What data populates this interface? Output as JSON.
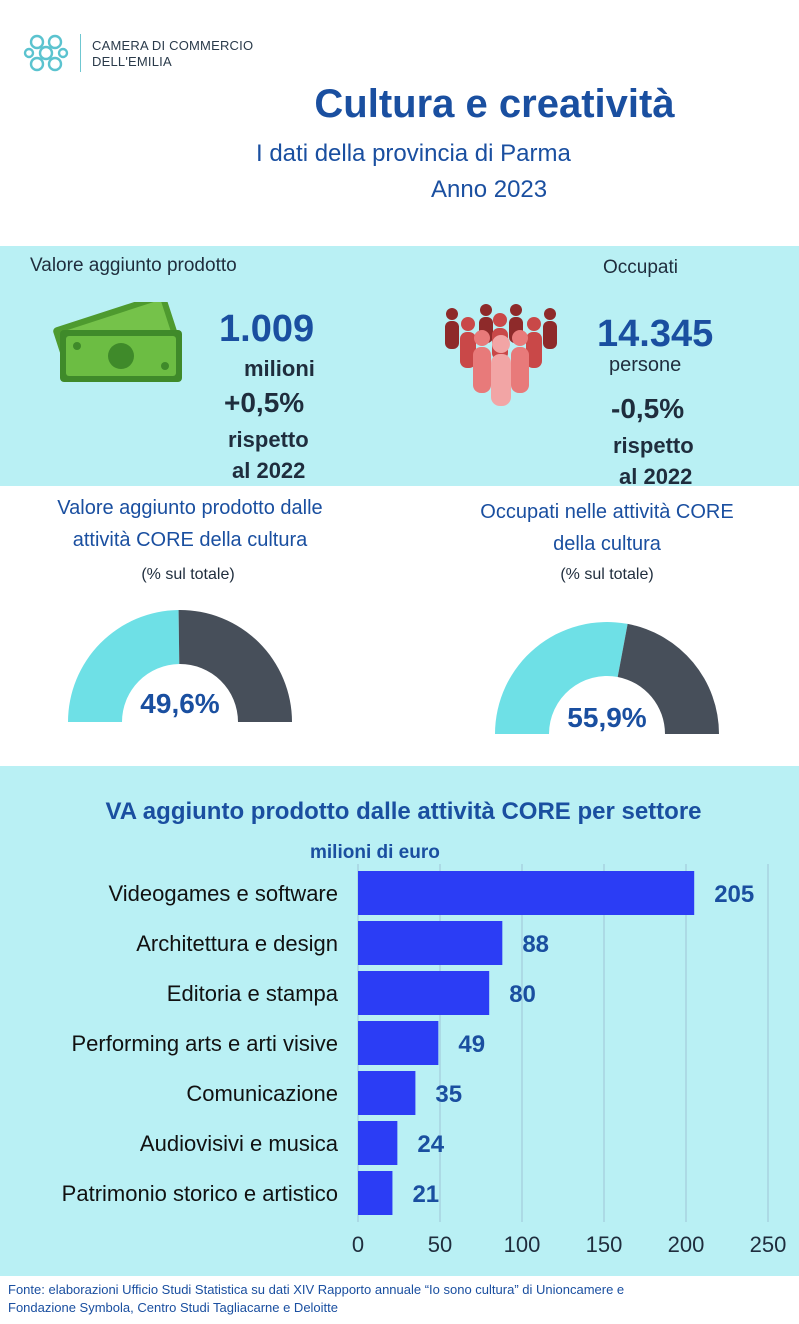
{
  "header": {
    "logo_line1": "CAMERA DI COMMERCIO",
    "logo_line2": "DELL'EMILIA",
    "title": "Cultura e creatività",
    "subtitle": "I dati della provincia di Parma",
    "year": "Anno 2023"
  },
  "kpi_va": {
    "label": "Valore aggiunto prodotto",
    "value": "1.009",
    "unit": "milioni",
    "change": "+0,5%",
    "ref_line1": "rispetto",
    "ref_line2": "al 2022",
    "icon": "money-icon"
  },
  "kpi_occ": {
    "label": "Occupati",
    "value": "14.345",
    "unit": "persone",
    "change": "-0,5%",
    "ref_line1": "rispetto",
    "ref_line2": "al 2022",
    "icon": "people-group-icon"
  },
  "gauge_va": {
    "title_line1": "Valore aggiunto prodotto dalle",
    "title_line2": "attività CORE della cultura",
    "subtitle": "(% sul totale)",
    "label": "49,6%",
    "fraction": 0.496
  },
  "gauge_occ": {
    "title_line1": "Occupati nelle attività CORE",
    "title_line2": "della cultura",
    "subtitle": "(% sul totale)",
    "label": "55,9%",
    "fraction": 0.559
  },
  "colors": {
    "gauge_fill": "#6ee0e6",
    "gauge_rest": "#474f5a",
    "bar": "#2b3df5",
    "band": "#b9f0f4",
    "title": "#1a4fa0"
  },
  "chart_data": {
    "type": "bar",
    "orientation": "horizontal",
    "title": "VA aggiunto prodotto dalle attività CORE per settore",
    "subtitle": "milioni di euro",
    "categories": [
      "Videogames e software",
      "Architettura e design",
      "Editoria e stampa",
      "Performing arts e arti visive",
      "Comunicazione",
      "Audiovisivi e musica",
      "Patrimonio storico e artistico"
    ],
    "values": [
      205,
      88,
      80,
      49,
      35,
      24,
      21
    ],
    "xlim": [
      0,
      250
    ],
    "xticks": [
      0,
      50,
      100,
      150,
      200,
      250
    ],
    "grid": "vertical"
  },
  "footer": {
    "line1": "Fonte: elaborazioni Ufficio Studi Statistica su dati XIV Rapporto annuale “Io sono cultura” di Unioncamere e",
    "line2": "Fondazione Symbola, Centro Studi Tagliacarne e Deloitte"
  }
}
